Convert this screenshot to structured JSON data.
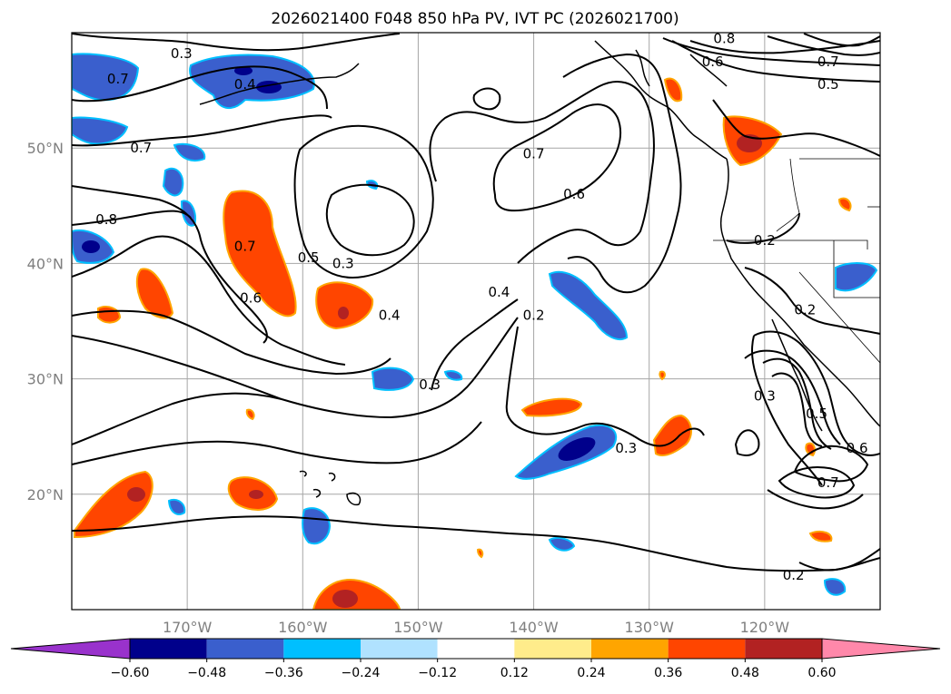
{
  "title": "2026021400 F048 850 hPa PV, IVT PC (2026021700)",
  "lat_labels": [
    {
      "label": "50°N",
      "lat": 50
    },
    {
      "label": "40°N",
      "lat": 40
    },
    {
      "label": "30°N",
      "lat": 30
    },
    {
      "label": "20°N",
      "lat": 20
    }
  ],
  "lon_labels": [
    {
      "label": "170°W",
      "lon": -170
    },
    {
      "label": "160°W",
      "lon": -160
    },
    {
      "label": "150°W",
      "lon": -150
    },
    {
      "label": "140°W",
      "lon": -140
    },
    {
      "label": "130°W",
      "lon": -130
    },
    {
      "label": "120°W",
      "lon": -120
    }
  ],
  "map_extent": {
    "lon_min": -180,
    "lon_max": -110,
    "lat_min": 10,
    "lat_max": 60
  },
  "colorbar": {
    "colors": [
      "#9932cc",
      "#00008b",
      "#3a5fcd",
      "#00bfff",
      "#b0e2ff",
      "#ffffff",
      "#ffec8b",
      "#ffa500",
      "#ff4500",
      "#b22222",
      "#ff88aa"
    ],
    "tick_labels": [
      "−0.60",
      "−0.48",
      "−0.36",
      "−0.24",
      "−0.12",
      "0.12",
      "0.24",
      "0.36",
      "0.48",
      "0.60"
    ]
  },
  "contour_labels": [
    {
      "text": "0.3",
      "lon": -170.5,
      "lat": 58.2
    },
    {
      "text": "0.4",
      "lon": -165.0,
      "lat": 55.5
    },
    {
      "text": "0.7",
      "lon": -176.0,
      "lat": 56.0
    },
    {
      "text": "0.7",
      "lon": -174.0,
      "lat": 50.0
    },
    {
      "text": "0.8",
      "lon": -177.0,
      "lat": 43.8
    },
    {
      "text": "0.7",
      "lon": -165.0,
      "lat": 41.5
    },
    {
      "text": "0.6",
      "lon": -164.5,
      "lat": 37.0
    },
    {
      "text": "0.5",
      "lon": -159.5,
      "lat": 40.5
    },
    {
      "text": "0.3",
      "lon": -156.5,
      "lat": 40.0
    },
    {
      "text": "0.4",
      "lon": -152.5,
      "lat": 35.5
    },
    {
      "text": "0.7",
      "lon": -140.0,
      "lat": 49.5
    },
    {
      "text": "0.6",
      "lon": -136.5,
      "lat": 46.0
    },
    {
      "text": "0.4",
      "lon": -143.0,
      "lat": 37.5
    },
    {
      "text": "0.2",
      "lon": -140.0,
      "lat": 35.5
    },
    {
      "text": "0.3",
      "lon": -149.0,
      "lat": 29.5
    },
    {
      "text": "0.3",
      "lon": -132.0,
      "lat": 24.0
    },
    {
      "text": "0.8",
      "lon": -123.5,
      "lat": 59.5
    },
    {
      "text": "0.6",
      "lon": -124.5,
      "lat": 57.5
    },
    {
      "text": "0.7",
      "lon": -114.5,
      "lat": 57.5
    },
    {
      "text": "0.5",
      "lon": -114.5,
      "lat": 55.5
    },
    {
      "text": "0.2",
      "lon": -120.0,
      "lat": 42.0
    },
    {
      "text": "0.2",
      "lon": -116.5,
      "lat": 36.0
    },
    {
      "text": "0.3",
      "lon": -120.0,
      "lat": 28.5
    },
    {
      "text": "0.5",
      "lon": -115.5,
      "lat": 27.0
    },
    {
      "text": "0.6",
      "lon": -112.0,
      "lat": 24.0
    },
    {
      "text": "0.7",
      "lon": -114.5,
      "lat": 21.0
    },
    {
      "text": "0.2",
      "lon": -117.5,
      "lat": 13.0
    }
  ]
}
